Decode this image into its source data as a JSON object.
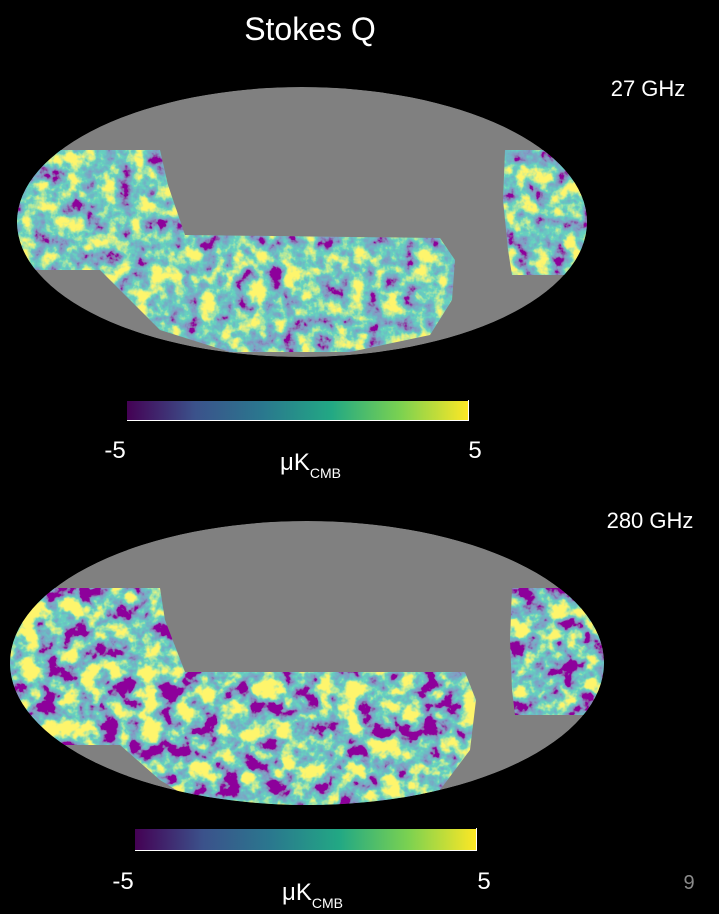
{
  "title": "Stokes Q",
  "maps": [
    {
      "label": "27 GHz",
      "colorbar": {
        "min": -5,
        "max": 5,
        "unit": "μK",
        "unit_sub": "CMB"
      }
    },
    {
      "label": "280 GHz",
      "colorbar": {
        "min": -5,
        "max": 5,
        "unit": "μK",
        "unit_sub": "CMB"
      }
    }
  ],
  "page_number": "9"
}
